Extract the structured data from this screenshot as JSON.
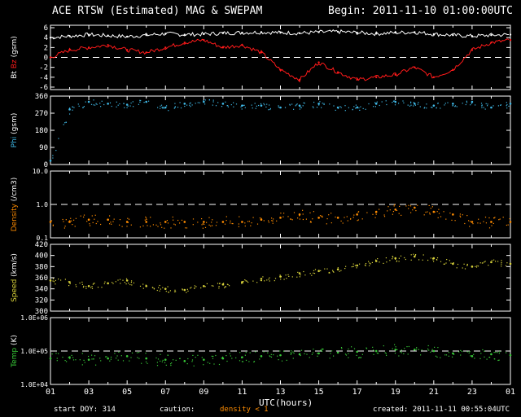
{
  "header": {
    "title": "ACE RTSW (Estimated) MAG & SWEPAM",
    "begin": "Begin: 2011-11-10 01:00:00UTC"
  },
  "footer": {
    "start_doy": "start DOY: 314",
    "caution": "caution:",
    "density_note": "density < 1",
    "created": "created: 2011-11-11 00:55:04UTC",
    "xlabel": "UTC(hours)"
  },
  "colors": {
    "bt": "#ffffff",
    "bz": "#ff1a1a",
    "phi": "#3fb8e6",
    "density": "#ff8c00",
    "speed": "#d8d23a",
    "temp": "#37c837",
    "frame": "#ffffff",
    "background": "#000000"
  },
  "chart_data": [
    {
      "type": "line",
      "panel": "magnetic field",
      "ylabel": [
        "Bt",
        "Bz",
        "(gsm)"
      ],
      "ylim": [
        -6.5,
        6.5
      ],
      "yticks": [
        6,
        4,
        2,
        0,
        -2,
        -4,
        -6
      ],
      "reference_line": 0,
      "x_hours": [
        1,
        2,
        3,
        4,
        5,
        6,
        7,
        8,
        9,
        10,
        11,
        12,
        13,
        14,
        15,
        16,
        17,
        18,
        19,
        20,
        21,
        22,
        23,
        24,
        25
      ],
      "series": [
        {
          "name": "Bt",
          "values": [
            4.0,
            4.3,
            4.6,
            4.4,
            4.2,
            4.5,
            4.8,
            4.6,
            4.7,
            4.9,
            5.0,
            5.1,
            5.0,
            4.9,
            5.1,
            5.2,
            5.0,
            4.8,
            5.0,
            5.1,
            4.7,
            4.5,
            4.3,
            4.5,
            4.6
          ]
        },
        {
          "name": "Bz",
          "values": [
            0.0,
            1.5,
            2.0,
            2.5,
            1.5,
            1.0,
            2.0,
            3.0,
            3.5,
            2.0,
            2.5,
            1.0,
            -2.5,
            -4.5,
            -1.0,
            -3.0,
            -4.5,
            -4.0,
            -3.5,
            -2.0,
            -4.0,
            -2.5,
            1.5,
            3.0,
            3.5
          ]
        }
      ]
    },
    {
      "type": "scatter",
      "panel": "phi",
      "ylabel": [
        "Phi",
        "(gsm)"
      ],
      "ylim": [
        0,
        360
      ],
      "yticks": [
        360,
        270,
        180,
        90,
        0
      ],
      "x_hours": [
        1,
        2,
        3,
        4,
        5,
        6,
        7,
        8,
        9,
        10,
        11,
        12,
        13,
        14,
        15,
        16,
        17,
        18,
        19,
        20,
        21,
        22,
        23,
        24,
        25
      ],
      "series": [
        {
          "name": "Phi",
          "values": [
            20,
            290,
            330,
            320,
            315,
            330,
            300,
            320,
            330,
            320,
            310,
            310,
            300,
            310,
            320,
            300,
            300,
            320,
            330,
            320,
            310,
            320,
            330,
            300,
            320
          ]
        }
      ]
    },
    {
      "type": "scatter",
      "panel": "density",
      "ylabel": [
        "Density",
        "(/cm3)"
      ],
      "yscale": "log",
      "ylim": [
        0.1,
        10.0
      ],
      "yticks": [
        10.0,
        1.0,
        0.1
      ],
      "ytick_labels": [
        "10.0",
        "1.0",
        "0.1"
      ],
      "reference_line": 1.0,
      "x_hours": [
        1,
        2,
        3,
        4,
        5,
        6,
        7,
        8,
        9,
        10,
        11,
        12,
        13,
        14,
        15,
        16,
        17,
        18,
        19,
        20,
        21,
        22,
        23,
        24,
        25
      ],
      "series": [
        {
          "name": "Density",
          "values": [
            0.3,
            0.3,
            0.35,
            0.35,
            0.3,
            0.3,
            0.3,
            0.3,
            0.3,
            0.3,
            0.3,
            0.35,
            0.4,
            0.5,
            0.4,
            0.4,
            0.5,
            0.6,
            0.7,
            0.8,
            0.6,
            0.5,
            0.3,
            0.3,
            0.3
          ]
        }
      ]
    },
    {
      "type": "scatter",
      "panel": "speed",
      "ylabel": [
        "Speed",
        "(km/s)"
      ],
      "ylim": [
        300,
        420
      ],
      "yticks": [
        420,
        400,
        380,
        360,
        340,
        320,
        300
      ],
      "x_hours": [
        1,
        2,
        3,
        4,
        5,
        6,
        7,
        8,
        9,
        10,
        11,
        12,
        13,
        14,
        15,
        16,
        17,
        18,
        19,
        20,
        21,
        22,
        23,
        24,
        25
      ],
      "series": [
        {
          "name": "Speed",
          "values": [
            355,
            352,
            345,
            350,
            355,
            345,
            340,
            338,
            345,
            348,
            352,
            358,
            362,
            368,
            372,
            375,
            382,
            390,
            395,
            398,
            395,
            385,
            380,
            388,
            385
          ]
        }
      ]
    },
    {
      "type": "scatter",
      "panel": "temperature",
      "ylabel": [
        "Temp",
        "(K)"
      ],
      "yscale": "log",
      "ylim": [
        10000,
        1000000
      ],
      "yticks": [
        1000000,
        100000,
        10000
      ],
      "ytick_labels": [
        "1.0E+06",
        "1.0E+05",
        "1.0E+04"
      ],
      "reference_line": 100000,
      "x_hours": [
        1,
        2,
        3,
        4,
        5,
        6,
        7,
        8,
        9,
        10,
        11,
        12,
        13,
        14,
        15,
        16,
        17,
        18,
        19,
        20,
        21,
        22,
        23,
        24,
        25
      ],
      "series": [
        {
          "name": "Temp",
          "values": [
            60000,
            65000,
            55000,
            60000,
            70000,
            60000,
            55000,
            50000,
            55000,
            60000,
            65000,
            70000,
            75000,
            80000,
            85000,
            90000,
            95000,
            100000,
            110000,
            110000,
            100000,
            85000,
            70000,
            80000,
            75000
          ]
        }
      ]
    }
  ],
  "xaxis": {
    "xlim": [
      1,
      25
    ],
    "tick_labels": [
      "01",
      "03",
      "05",
      "07",
      "09",
      "11",
      "13",
      "15",
      "17",
      "19",
      "21",
      "23",
      "01"
    ]
  }
}
